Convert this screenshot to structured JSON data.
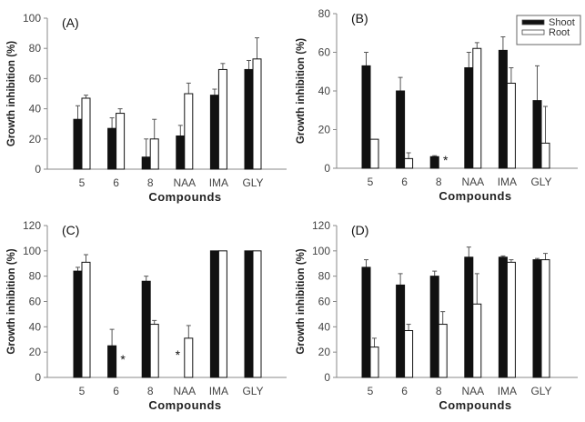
{
  "colors": {
    "shoot": "#111111",
    "root": "#ffffff",
    "axis": "#888888"
  },
  "legend": {
    "entries": [
      "Shoot",
      "Root"
    ],
    "placement": "top-right",
    "panel": "B"
  },
  "chart_data": [
    {
      "type": "bar",
      "panel_label": "(A)",
      "categories": [
        "5",
        "6",
        "8",
        "NAA",
        "IMA",
        "GLY"
      ],
      "xlabel": "Compounds",
      "ylabel": "Growth inhibition (%)",
      "ylim": [
        0,
        100
      ],
      "yticks": [
        0,
        20,
        40,
        60,
        80,
        100
      ],
      "series": [
        {
          "name": "Shoot",
          "values": [
            33,
            27,
            8,
            22,
            49,
            66
          ],
          "errors": [
            9,
            7,
            12,
            7,
            4,
            6
          ]
        },
        {
          "name": "Root",
          "values": [
            47,
            37,
            20,
            50,
            66,
            73
          ],
          "errors": [
            2,
            3,
            13,
            7,
            4,
            14
          ]
        }
      ],
      "annotations": []
    },
    {
      "type": "bar",
      "panel_label": "(B)",
      "categories": [
        "5",
        "6",
        "8",
        "NAA",
        "IMA",
        "GLY"
      ],
      "xlabel": "Compounds",
      "ylabel": "Growth inhibition (%)",
      "ylim": [
        0,
        80
      ],
      "yticks": [
        0,
        20,
        40,
        60,
        80
      ],
      "series": [
        {
          "name": "Shoot",
          "values": [
            53,
            40,
            6,
            52,
            61,
            35
          ],
          "errors": [
            7,
            7,
            0.5,
            8,
            7,
            18
          ]
        },
        {
          "name": "Root",
          "values": [
            15,
            5,
            0,
            62,
            44,
            13
          ],
          "errors": [
            0,
            3,
            0,
            3,
            8,
            19
          ]
        }
      ],
      "annotations": [
        {
          "category": "8",
          "series": "Root",
          "text": "*"
        }
      ]
    },
    {
      "type": "bar",
      "panel_label": "(C)",
      "categories": [
        "5",
        "6",
        "8",
        "NAA",
        "IMA",
        "GLY"
      ],
      "xlabel": "Compounds",
      "ylabel": "Growth inhibition (%)",
      "ylim": [
        0,
        120
      ],
      "yticks": [
        0,
        20,
        40,
        60,
        80,
        100,
        120
      ],
      "series": [
        {
          "name": "Shoot",
          "values": [
            84,
            25,
            76,
            0,
            100,
            100
          ],
          "errors": [
            3,
            13,
            4,
            0,
            0,
            0
          ]
        },
        {
          "name": "Root",
          "values": [
            91,
            0,
            42,
            31,
            100,
            100
          ],
          "errors": [
            6,
            0,
            3,
            10,
            0,
            0
          ]
        }
      ],
      "annotations": [
        {
          "category": "6",
          "series": "Root",
          "text": "*"
        },
        {
          "category": "NAA",
          "series": "Shoot",
          "text": "*"
        }
      ]
    },
    {
      "type": "bar",
      "panel_label": "(D)",
      "categories": [
        "5",
        "6",
        "8",
        "NAA",
        "IMA",
        "GLY"
      ],
      "xlabel": "Compounds",
      "ylabel": "Growth inhibition (%)",
      "ylim": [
        0,
        120
      ],
      "yticks": [
        0,
        20,
        40,
        60,
        80,
        100,
        120
      ],
      "series": [
        {
          "name": "Shoot",
          "values": [
            87,
            73,
            80,
            95,
            95,
            93
          ],
          "errors": [
            6,
            9,
            4,
            8,
            1,
            1
          ]
        },
        {
          "name": "Root",
          "values": [
            24,
            37,
            42,
            58,
            91,
            93
          ],
          "errors": [
            7,
            5,
            10,
            24,
            2,
            5
          ]
        }
      ],
      "annotations": []
    }
  ]
}
